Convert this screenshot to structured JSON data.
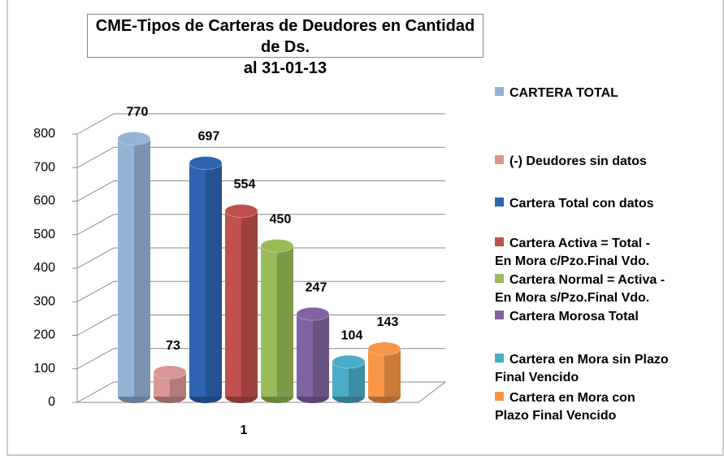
{
  "chart_data": {
    "type": "bar3d",
    "title": "CME-Tipos de Carteras de Deudores en Cantidad de Ds.\nal 31-01-13",
    "categories": [
      "1"
    ],
    "ylim": [
      0,
      800
    ],
    "yticks": [
      0,
      100,
      200,
      300,
      400,
      500,
      600,
      700,
      800
    ],
    "grid": true,
    "legend": "right",
    "series": [
      {
        "name": "CARTERA TOTAL",
        "color": "#95b3d7",
        "values": [
          770
        ]
      },
      {
        "name": "(-) Deudores sin datos",
        "color": "#d99694",
        "values": [
          73
        ]
      },
      {
        "name": "Cartera Total con datos",
        "color": "#2e64b0",
        "values": [
          697
        ]
      },
      {
        "name": "Cartera Activa = Total -\nEn Mora c/Pzo.Final Vdo.",
        "color": "#c0504d",
        "values": [
          554
        ]
      },
      {
        "name": "Cartera Normal = Activa -\nEn Mora s/Pzo.Final Vdo.",
        "color": "#9bbb59",
        "values": [
          450
        ]
      },
      {
        "name": "Cartera Morosa Total",
        "color": "#8064a2",
        "values": [
          247
        ]
      },
      {
        "name": "Cartera en Mora sin Plazo\nFinal Vencido",
        "color": "#4bacc6",
        "values": [
          104
        ]
      },
      {
        "name": "Cartera en Mora con\nPlazo Final Vencido",
        "color": "#f79646",
        "values": [
          143
        ]
      }
    ]
  }
}
